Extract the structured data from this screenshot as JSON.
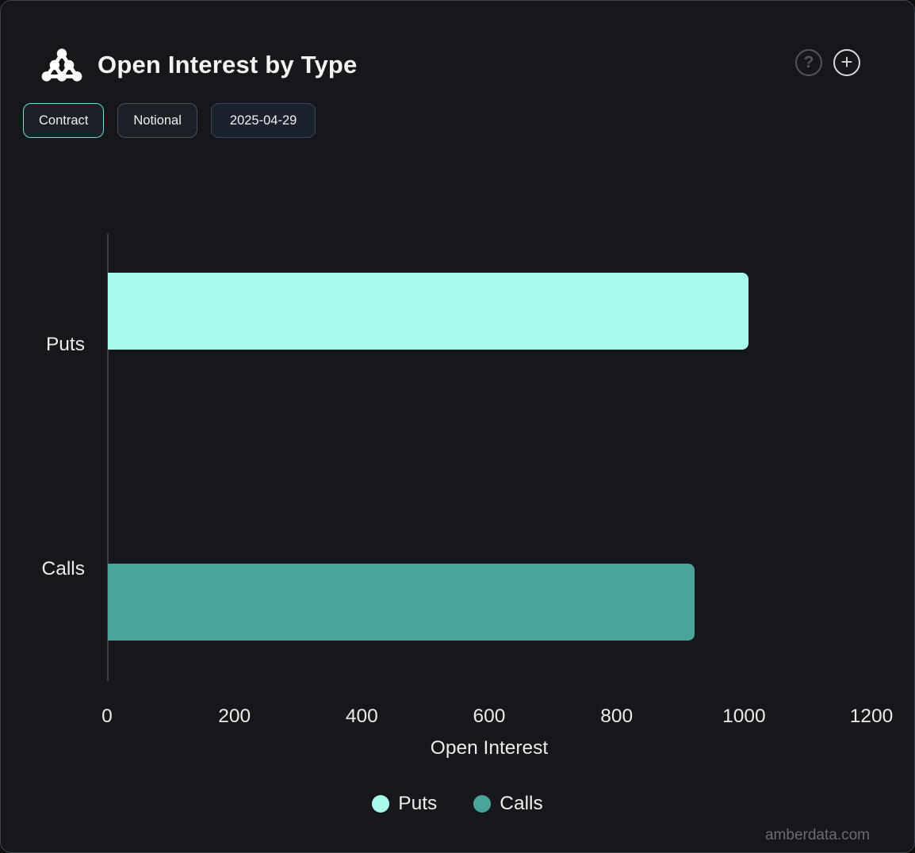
{
  "header": {
    "title": "Open Interest by Type",
    "help_glyph": "?",
    "add_glyph": "+"
  },
  "toolbar": {
    "contract_label": "Contract",
    "notional_label": "Notional",
    "date_label": "2025-04-29"
  },
  "chart_data": {
    "type": "bar",
    "orientation": "horizontal",
    "title": "Open Interest by Type",
    "categories": [
      "Puts",
      "Calls"
    ],
    "series": [
      {
        "name": "Puts",
        "color": "#a8fbec",
        "values": [
          1006,
          null
        ]
      },
      {
        "name": "Calls",
        "color": "#4aa49b",
        "values": [
          null,
          921
        ]
      }
    ],
    "xlabel": "Open Interest",
    "xlim": [
      0,
      1200
    ],
    "x_ticks": [
      0,
      200,
      400,
      600,
      800,
      1000,
      1200
    ],
    "grid": false,
    "legend_position": "bottom",
    "legend": [
      {
        "label": "Puts",
        "color": "#a8fbec"
      },
      {
        "label": "Calls",
        "color": "#4aa49b"
      }
    ]
  },
  "watermark": "amberdata.com",
  "colors": {
    "background": "#15171a",
    "card_border": "#3f454d",
    "accent_active": "#63e6d4",
    "puts": "#a8fbec",
    "calls": "#4aa49b",
    "axis_line": "#3b3f45"
  }
}
